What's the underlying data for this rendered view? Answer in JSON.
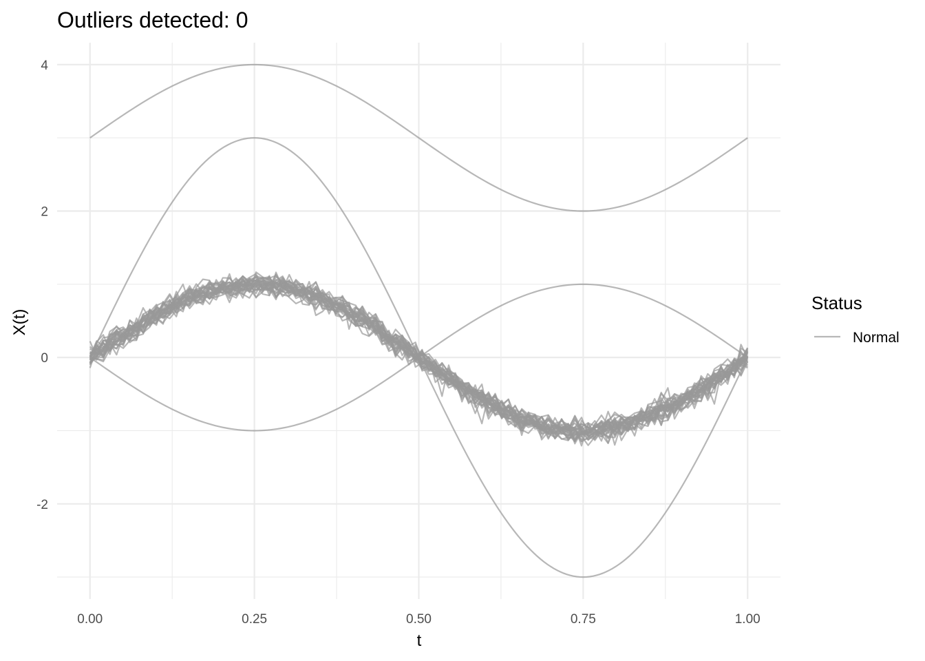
{
  "chart_data": {
    "type": "line",
    "title": "Outliers detected: 0",
    "xlabel": "t",
    "ylabel": "X(t)",
    "xlim": [
      -0.05,
      1.05
    ],
    "ylim": [
      -3.3,
      4.3
    ],
    "x_ticks": [
      {
        "value": 0.0,
        "label": "0.00"
      },
      {
        "value": 0.25,
        "label": "0.25"
      },
      {
        "value": 0.5,
        "label": "0.50"
      },
      {
        "value": 0.75,
        "label": "0.75"
      },
      {
        "value": 1.0,
        "label": "1.00"
      }
    ],
    "y_ticks": [
      {
        "value": -2,
        "label": "-2"
      },
      {
        "value": 0,
        "label": "0"
      },
      {
        "value": 2,
        "label": "2"
      },
      {
        "value": 4,
        "label": "4"
      }
    ],
    "grid": true,
    "legend": {
      "title": "Status",
      "position": "right",
      "entries": [
        {
          "label": "Normal",
          "color": "#999999"
        }
      ]
    },
    "line_color": "#999999",
    "line_opacity": 0.7,
    "series_description": "30 noisy sin(2*pi*t) curves plus 4 smooth curves: sin(2*pi*t)+3, 3*sin(2*pi*t), -sin(2*pi*t), and noisy-free sin(2*pi*t) variants",
    "smooth_series": [
      {
        "formula": "3 + sin(2*pi*t)",
        "points": [
          [
            0,
            3
          ],
          [
            0.25,
            4
          ],
          [
            0.5,
            3
          ],
          [
            0.75,
            2
          ],
          [
            1,
            3
          ]
        ]
      },
      {
        "formula": "3*sin(2*pi*t)",
        "points": [
          [
            0,
            0
          ],
          [
            0.25,
            3
          ],
          [
            0.5,
            0
          ],
          [
            0.75,
            -3
          ],
          [
            1,
            0
          ]
        ]
      },
      {
        "formula": "-sin(2*pi*t)",
        "points": [
          [
            0,
            0
          ],
          [
            0.25,
            -1
          ],
          [
            0.5,
            0
          ],
          [
            0.75,
            1
          ],
          [
            1,
            0
          ]
        ]
      }
    ],
    "noisy_series": {
      "count": 30,
      "base_formula": "sin(2*pi*t)",
      "noise_sd": 0.08,
      "n_points": 100
    }
  }
}
